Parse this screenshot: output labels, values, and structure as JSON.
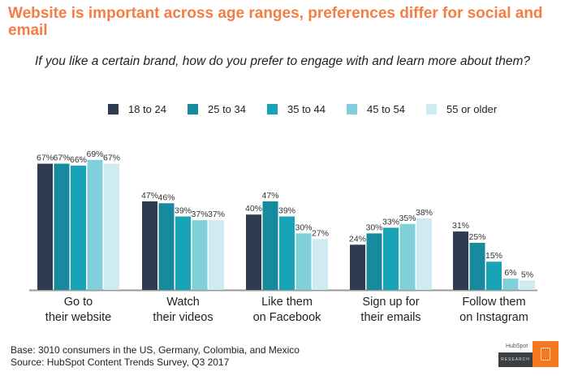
{
  "title": "Website is important across age ranges, preferences differ for social and email",
  "chart_data": {
    "type": "bar",
    "title": "If you like a certain brand, how do you prefer to engage with and learn more about them?",
    "categories": [
      "Go to\ntheir website",
      "Watch\ntheir videos",
      "Like them\non Facebook",
      "Sign up for\ntheir emails",
      "Follow them\non Instagram"
    ],
    "series": [
      {
        "name": "18 to 24",
        "color": "#2d3d4f",
        "values": [
          67,
          47,
          40,
          24,
          31
        ]
      },
      {
        "name": "25 to 34",
        "color": "#178a9e",
        "values": [
          67,
          46,
          47,
          30,
          25
        ]
      },
      {
        "name": "35 to 44",
        "color": "#18a3b9",
        "values": [
          66,
          39,
          39,
          33,
          15
        ]
      },
      {
        "name": "45 to 54",
        "color": "#80d0dc",
        "values": [
          69,
          37,
          30,
          35,
          6
        ]
      },
      {
        "name": "55 or older",
        "color": "#cdebf1",
        "values": [
          67,
          37,
          27,
          38,
          5
        ]
      }
    ],
    "value_format": "percent",
    "legend": "top",
    "grid": false
  },
  "footer": {
    "base": "Base: 3010 consumers in the US, Germany, Colombia, and Mexico",
    "source": "Source: HubSpot Content Trends Survey, Q3 2017"
  },
  "logo": {
    "brand": "HubSpot",
    "label": "RESEARCH"
  }
}
